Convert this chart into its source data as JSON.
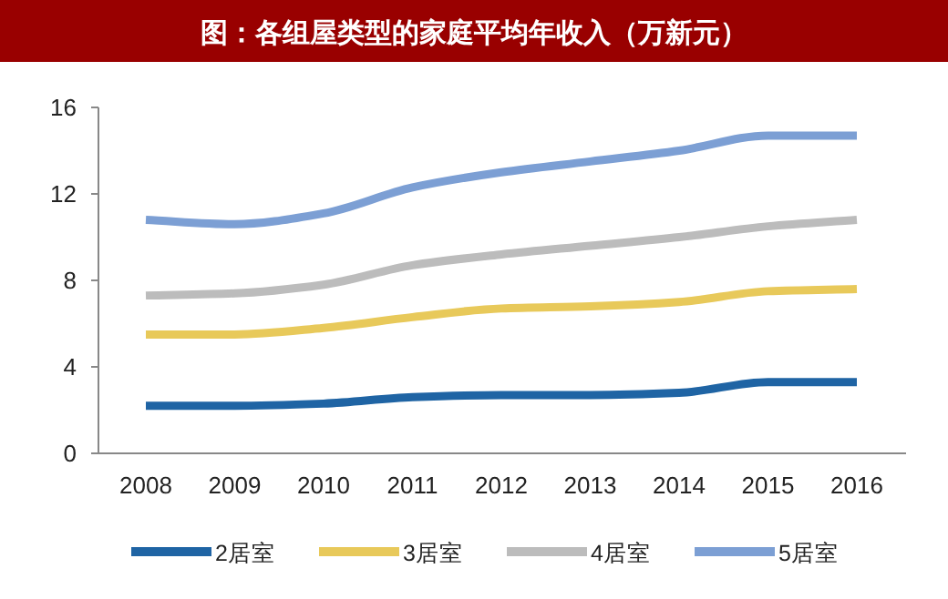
{
  "chart_data": {
    "type": "line",
    "title": "图：各组屋类型的家庭平均年收入（万新元）",
    "categories": [
      "2008",
      "2009",
      "2010",
      "2011",
      "2012",
      "2013",
      "2014",
      "2015",
      "2016"
    ],
    "series": [
      {
        "name": "2居室",
        "color": "#1f64a4",
        "values": [
          2.2,
          2.2,
          2.3,
          2.6,
          2.7,
          2.7,
          2.8,
          3.3,
          3.3
        ]
      },
      {
        "name": "3居室",
        "color": "#e8c95a",
        "values": [
          5.5,
          5.5,
          5.8,
          6.3,
          6.7,
          6.8,
          7.0,
          7.5,
          7.6
        ]
      },
      {
        "name": "4居室",
        "color": "#bcbcbc",
        "values": [
          7.3,
          7.4,
          7.8,
          8.7,
          9.2,
          9.6,
          10.0,
          10.5,
          10.8
        ]
      },
      {
        "name": "5居室",
        "color": "#7c9fd4",
        "values": [
          10.8,
          10.6,
          11.1,
          12.3,
          13.0,
          13.5,
          14.0,
          14.7,
          14.7
        ]
      }
    ],
    "ylim": [
      0,
      16
    ],
    "yticks": [
      0,
      4,
      8,
      12,
      16
    ],
    "grid": false,
    "legend": "bottom",
    "marker": "none",
    "line_style": "solid"
  }
}
